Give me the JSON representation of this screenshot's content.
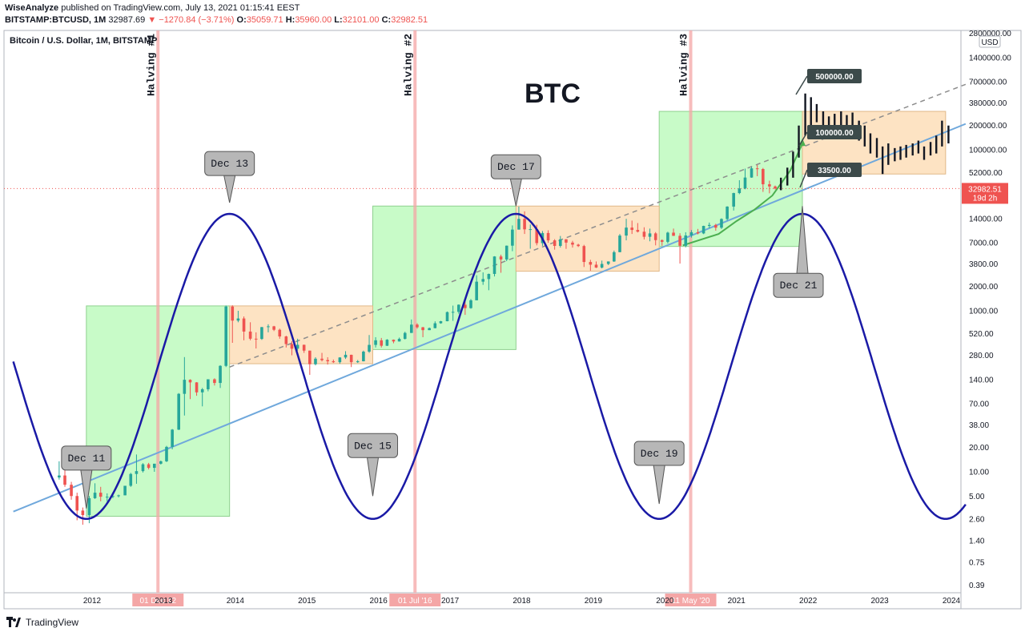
{
  "header": {
    "author": "WiseAnalyze",
    "published_text": "published on TradingView.com, July 13, 2021 01:15:41 EEST",
    "symbol": "BITSTAMP:BTCUSD, 1M",
    "last": "32987.69",
    "change": "−1270.84 (−3.71%)",
    "o_label": "O:",
    "o_value": "35059.71",
    "h_label": "H:",
    "h_value": "35960.00",
    "l_label": "L:",
    "l_value": "32101.00",
    "c_label": "C:",
    "c_value": "32982.51"
  },
  "chart_data": {
    "type": "candlestick",
    "title": "Bitcoin / U.S. Dollar, 1M, BITSTAMP",
    "big_label": "BTC",
    "currency": "USD",
    "y_scale": "log",
    "y_ticks": [
      "2800000.00",
      "1400000.00",
      "700000.00",
      "380000.00",
      "200000.00",
      "100000.00",
      "52000.00",
      "14000.00",
      "7000.00",
      "3800.00",
      "2000.00",
      "1000.00",
      "520.00",
      "280.00",
      "140.00",
      "70.00",
      "38.00",
      "20.00",
      "10.00",
      "5.00",
      "2.60",
      "1.40",
      "0.75",
      "0.39"
    ],
    "x_ticks": [
      "2012",
      "2013",
      "2014",
      "2015",
      "2016",
      "2017",
      "2018",
      "2019",
      "2020",
      "2021",
      "2022",
      "2023",
      "2024"
    ],
    "current_price": "32982.51",
    "current_countdown": "19d 2h",
    "halvings": [
      {
        "label": "Halving #1",
        "date_label": "01 Dec 12",
        "x": 2012.92
      },
      {
        "label": "Halving #2",
        "date_label": "01 Jul '16",
        "x": 2016.51
      },
      {
        "label": "Halving #3",
        "date_label": "11 May '20",
        "x": 2020.36
      }
    ],
    "cycle_labels": [
      {
        "label": "Dec 11",
        "x": 2011.92,
        "y": 3.5,
        "pointer": "down"
      },
      {
        "label": "Dec 13",
        "x": 2013.92,
        "y": 22000,
        "pointer": "down"
      },
      {
        "label": "Dec 15",
        "x": 2015.92,
        "y": 5.0,
        "pointer": "down"
      },
      {
        "label": "Dec 17",
        "x": 2017.92,
        "y": 20000,
        "pointer": "down"
      },
      {
        "label": "Dec 19",
        "x": 2019.92,
        "y": 4.0,
        "pointer": "down"
      },
      {
        "label": "Dec 21",
        "x": 2021.92,
        "y": 20000,
        "pointer": "up"
      }
    ],
    "price_targets": [
      "500000.00",
      "100000.00",
      "33500.00"
    ],
    "candles": [
      [
        2011.5,
        8.5,
        13.5,
        8.0,
        9.0
      ],
      [
        2011.58,
        9.0,
        11.0,
        6.5,
        6.9
      ],
      [
        2011.67,
        6.9,
        7.5,
        4.5,
        5.0
      ],
      [
        2011.75,
        5.0,
        5.5,
        2.5,
        3.3
      ],
      [
        2011.83,
        3.3,
        3.6,
        2.2,
        2.9
      ],
      [
        2011.92,
        2.9,
        5.0,
        2.3,
        4.7
      ],
      [
        2012.0,
        4.7,
        7.2,
        4.6,
        5.5
      ],
      [
        2012.08,
        5.5,
        6.5,
        4.3,
        4.9
      ],
      [
        2012.17,
        4.9,
        5.4,
        4.3,
        4.9
      ],
      [
        2012.25,
        4.9,
        5.3,
        4.7,
        5.0
      ],
      [
        2012.33,
        5.0,
        5.2,
        4.8,
        5.1
      ],
      [
        2012.42,
        5.1,
        6.7,
        5.1,
        6.7
      ],
      [
        2012.5,
        6.7,
        9.7,
        6.5,
        9.4
      ],
      [
        2012.58,
        9.4,
        16.4,
        7.1,
        10.2
      ],
      [
        2012.67,
        10.2,
        12.8,
        9.8,
        12.4
      ],
      [
        2012.75,
        12.4,
        12.9,
        10.7,
        11.2
      ],
      [
        2012.83,
        11.2,
        12.6,
        10.0,
        12.6
      ],
      [
        2012.92,
        12.6,
        13.8,
        12.3,
        13.5
      ],
      [
        2013.0,
        13.5,
        21.0,
        13.2,
        20.4
      ],
      [
        2013.08,
        20.4,
        34.0,
        19.0,
        33.4
      ],
      [
        2013.17,
        33.4,
        95.0,
        33.0,
        93.0
      ],
      [
        2013.25,
        93.0,
        266,
        50,
        139
      ],
      [
        2013.33,
        139,
        141,
        80,
        129
      ],
      [
        2013.42,
        129,
        130,
        88,
        97
      ],
      [
        2013.5,
        97,
        110,
        65,
        106
      ],
      [
        2013.58,
        106,
        125,
        100,
        141
      ],
      [
        2013.67,
        141,
        145,
        118,
        127
      ],
      [
        2013.75,
        127,
        211,
        110,
        207
      ],
      [
        2013.83,
        207,
        1163,
        200,
        1130
      ],
      [
        2013.92,
        1130,
        1170,
        400,
        755
      ],
      [
        2014.0,
        755,
        1000,
        720,
        803
      ],
      [
        2014.08,
        803,
        850,
        430,
        552
      ],
      [
        2014.17,
        552,
        720,
        430,
        450
      ],
      [
        2014.25,
        450,
        540,
        340,
        447
      ],
      [
        2014.33,
        447,
        630,
        435,
        627
      ],
      [
        2014.42,
        627,
        680,
        540,
        641
      ],
      [
        2014.5,
        641,
        650,
        560,
        581
      ],
      [
        2014.58,
        581,
        600,
        450,
        480
      ],
      [
        2014.67,
        480,
        490,
        350,
        386
      ],
      [
        2014.75,
        386,
        420,
        280,
        338
      ],
      [
        2014.83,
        338,
        450,
        320,
        378
      ],
      [
        2014.92,
        378,
        380,
        300,
        320
      ],
      [
        2015.0,
        320,
        320,
        160,
        217
      ],
      [
        2015.08,
        217,
        265,
        210,
        254
      ],
      [
        2015.17,
        254,
        300,
        235,
        244
      ],
      [
        2015.25,
        244,
        265,
        215,
        236
      ],
      [
        2015.33,
        236,
        248,
        225,
        230
      ],
      [
        2015.42,
        230,
        265,
        220,
        263
      ],
      [
        2015.5,
        263,
        315,
        252,
        284
      ],
      [
        2015.58,
        284,
        285,
        200,
        230
      ],
      [
        2015.67,
        230,
        245,
        225,
        236
      ],
      [
        2015.75,
        236,
        320,
        235,
        311
      ],
      [
        2015.83,
        311,
        500,
        300,
        377
      ],
      [
        2015.92,
        377,
        470,
        350,
        430
      ],
      [
        2016.0,
        430,
        460,
        350,
        368
      ],
      [
        2016.08,
        368,
        445,
        365,
        437
      ],
      [
        2016.17,
        437,
        440,
        395,
        416
      ],
      [
        2016.25,
        416,
        465,
        415,
        448
      ],
      [
        2016.33,
        448,
        550,
        440,
        531
      ],
      [
        2016.42,
        531,
        780,
        530,
        673
      ],
      [
        2016.5,
        673,
        700,
        600,
        624
      ],
      [
        2016.58,
        624,
        630,
        470,
        575
      ],
      [
        2016.67,
        575,
        620,
        575,
        609
      ],
      [
        2016.75,
        609,
        740,
        605,
        700
      ],
      [
        2016.83,
        700,
        750,
        690,
        742
      ],
      [
        2016.92,
        742,
        980,
        740,
        963
      ],
      [
        2017.0,
        963,
        1160,
        750,
        970
      ],
      [
        2017.08,
        970,
        1200,
        920,
        1190
      ],
      [
        2017.17,
        1190,
        1350,
        890,
        1080
      ],
      [
        2017.25,
        1080,
        1400,
        1060,
        1350
      ],
      [
        2017.33,
        1350,
        2760,
        1350,
        2300
      ],
      [
        2017.42,
        2300,
        3000,
        2100,
        2480
      ],
      [
        2017.5,
        2480,
        2900,
        1800,
        2870
      ],
      [
        2017.58,
        2870,
        4770,
        2670,
        4730
      ],
      [
        2017.67,
        4730,
        4980,
        2970,
        4340
      ],
      [
        2017.75,
        4340,
        6470,
        4140,
        6440
      ],
      [
        2017.83,
        6440,
        11500,
        5500,
        10200
      ],
      [
        2017.92,
        10200,
        19700,
        10200,
        13850
      ],
      [
        2018.0,
        13850,
        17200,
        9000,
        10270
      ],
      [
        2018.08,
        10270,
        11800,
        5900,
        10330
      ],
      [
        2018.17,
        10330,
        11700,
        6500,
        6930
      ],
      [
        2018.25,
        6930,
        9800,
        6420,
        9250
      ],
      [
        2018.33,
        9250,
        10000,
        7000,
        7500
      ],
      [
        2018.42,
        7500,
        7760,
        5750,
        6400
      ],
      [
        2018.5,
        6400,
        8500,
        6100,
        7730
      ],
      [
        2018.58,
        7730,
        7780,
        5880,
        7030
      ],
      [
        2018.67,
        7030,
        7400,
        6100,
        6630
      ],
      [
        2018.75,
        6630,
        6800,
        6200,
        6370
      ],
      [
        2018.83,
        6370,
        6600,
        3500,
        4040
      ],
      [
        2018.92,
        4040,
        4300,
        3150,
        3740
      ],
      [
        2019.0,
        3740,
        4100,
        3400,
        3440
      ],
      [
        2019.08,
        3440,
        4200,
        3360,
        3820
      ],
      [
        2019.17,
        3820,
        4100,
        3700,
        4100
      ],
      [
        2019.25,
        4100,
        5600,
        4050,
        5350
      ],
      [
        2019.33,
        5350,
        9000,
        5330,
        8600
      ],
      [
        2019.42,
        8600,
        13880,
        7500,
        10800
      ],
      [
        2019.5,
        10800,
        13200,
        9000,
        10100
      ],
      [
        2019.58,
        10100,
        12300,
        9400,
        9600
      ],
      [
        2019.67,
        9600,
        10900,
        7700,
        8300
      ],
      [
        2019.75,
        8300,
        10500,
        7300,
        9150
      ],
      [
        2019.83,
        9150,
        9500,
        6500,
        7550
      ],
      [
        2019.92,
        7550,
        7700,
        6430,
        7190
      ],
      [
        2020.0,
        7190,
        9600,
        6850,
        9350
      ],
      [
        2020.08,
        9350,
        10500,
        8500,
        8540
      ],
      [
        2020.17,
        8540,
        9190,
        3860,
        6420
      ],
      [
        2020.25,
        6420,
        9460,
        6150,
        8630
      ],
      [
        2020.33,
        8630,
        10070,
        8100,
        9460
      ],
      [
        2020.42,
        9460,
        10400,
        8900,
        9140
      ],
      [
        2020.5,
        9140,
        11400,
        8960,
        11330
      ],
      [
        2020.58,
        11330,
        12470,
        10600,
        11650
      ],
      [
        2020.67,
        11650,
        12050,
        9880,
        10770
      ],
      [
        2020.75,
        10770,
        14100,
        10380,
        13800
      ],
      [
        2020.83,
        13800,
        19900,
        13200,
        19700
      ],
      [
        2020.92,
        19700,
        29300,
        17600,
        28990
      ],
      [
        2021.0,
        28990,
        41900,
        28100,
        33100
      ],
      [
        2021.08,
        33100,
        58300,
        32300,
        45200
      ],
      [
        2021.17,
        45200,
        61700,
        44900,
        58800
      ],
      [
        2021.25,
        58800,
        64900,
        47000,
        57700
      ],
      [
        2021.33,
        57700,
        59500,
        30000,
        37300
      ],
      [
        2021.42,
        37300,
        41300,
        28800,
        35060
      ],
      [
        2021.5,
        35060,
        35960,
        32100,
        32980
      ]
    ],
    "projection_bars": [
      [
        2021.58,
        31500,
        45000
      ],
      [
        2021.67,
        36000,
        60000
      ],
      [
        2021.75,
        45000,
        95000
      ],
      [
        2021.83,
        80000,
        200000
      ],
      [
        2021.92,
        150000,
        500000
      ],
      [
        2022.0,
        200000,
        450000
      ],
      [
        2022.08,
        220000,
        370000
      ],
      [
        2022.17,
        150000,
        300000
      ],
      [
        2022.25,
        160000,
        260000
      ],
      [
        2022.33,
        170000,
        280000
      ],
      [
        2022.42,
        180000,
        300000
      ],
      [
        2022.5,
        160000,
        270000
      ],
      [
        2022.58,
        170000,
        290000
      ],
      [
        2022.67,
        130000,
        230000
      ],
      [
        2022.75,
        110000,
        200000
      ],
      [
        2022.83,
        90000,
        160000
      ],
      [
        2022.92,
        80000,
        140000
      ],
      [
        2023.0,
        50000,
        110000
      ],
      [
        2023.08,
        65000,
        120000
      ],
      [
        2023.17,
        72000,
        105000
      ],
      [
        2023.25,
        75000,
        110000
      ],
      [
        2023.33,
        80000,
        115000
      ],
      [
        2023.42,
        85000,
        120000
      ],
      [
        2023.5,
        90000,
        130000
      ],
      [
        2023.58,
        75000,
        110000
      ],
      [
        2023.67,
        85000,
        125000
      ],
      [
        2023.75,
        90000,
        150000
      ],
      [
        2023.83,
        110000,
        230000
      ],
      [
        2023.92,
        120000,
        200000
      ]
    ],
    "boxes_green": [
      {
        "x0": 2011.92,
        "x1": 2013.92,
        "y0": 2.8,
        "y1": 1150
      },
      {
        "x0": 2015.92,
        "x1": 2017.92,
        "y0": 330,
        "y1": 20000
      },
      {
        "x0": 2019.92,
        "x1": 2021.92,
        "y0": 6300,
        "y1": 300000
      }
    ],
    "boxes_orange": [
      {
        "x0": 2013.92,
        "x1": 2015.92,
        "y0": 220,
        "y1": 1150
      },
      {
        "x0": 2017.92,
        "x1": 2019.92,
        "y0": 3100,
        "y1": 20000
      },
      {
        "x0": 2021.92,
        "x1": 2023.92,
        "y0": 50000,
        "y1": 300000
      }
    ],
    "trend_solid": {
      "x0": 2010.9,
      "y0": 3.2,
      "x1": 2024.2,
      "y1": 210000
    },
    "trend_dashed": {
      "x0": 2013.92,
      "y0": 200,
      "x1": 2024.2,
      "y1": 650000
    },
    "green_curve": [
      [
        2020.25,
        6500
      ],
      [
        2020.75,
        9000
      ],
      [
        2021.0,
        13000
      ],
      [
        2021.25,
        18000
      ],
      [
        2021.5,
        27000
      ],
      [
        2021.75,
        55000
      ],
      [
        2021.92,
        120000
      ]
    ],
    "sine": {
      "period_years": 4,
      "peak_x": 2013.92,
      "high": 16000,
      "low": 2.6,
      "x_start": 2010.9,
      "x_end": 2024.2
    }
  },
  "footer": {
    "brand": "TradingView"
  }
}
